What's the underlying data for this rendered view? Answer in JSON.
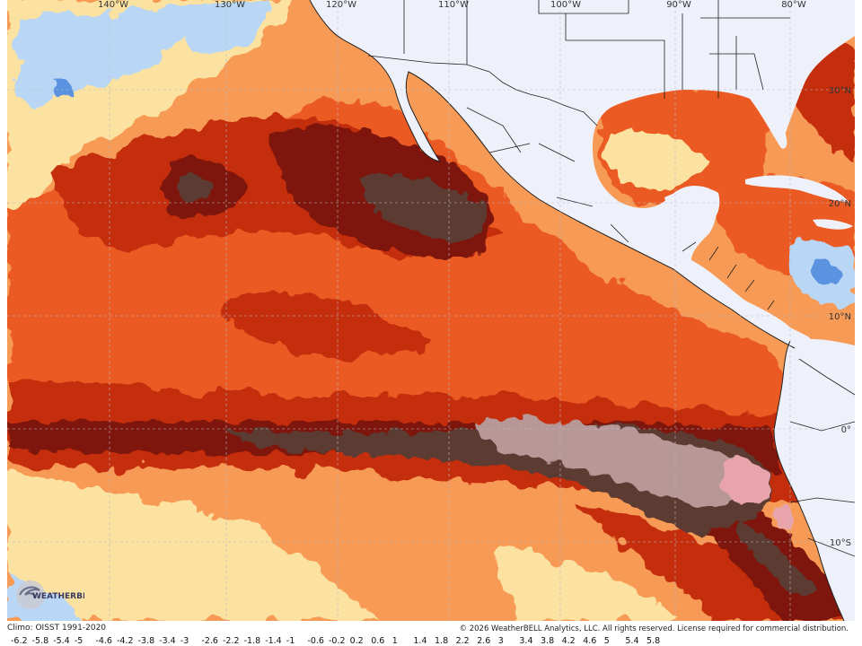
{
  "map": {
    "longitude_labels": [
      "140°W",
      "130°W",
      "120°W",
      "110°W",
      "100°W",
      "90°W",
      "80°W"
    ],
    "latitude_labels": [
      "30°N",
      "20°N",
      "10°N",
      "0°",
      "10°S"
    ],
    "colors": {
      "land": "#eef1fa",
      "border": "#202020",
      "very_cold": "#5b93e0",
      "cold": "#b9d7f5",
      "neutral": "#fbe2a0",
      "warm": "#f79a55",
      "warmer": "#ea5a22",
      "hot": "#c42d10",
      "very_hot": "#7e1907",
      "extreme": "#5b3a33",
      "extreme_pale": "#b89797",
      "extreme_pink": "#e9a4ab"
    }
  },
  "footer": {
    "climo": "Climo: OISST 1991-2020",
    "credit": "© 2026 WeatherBELL Analytics, LLC. All rights reserved. License required for commercial distribution.",
    "logo_text": "WEATHERBELL"
  },
  "scale_ticks": [
    "-6.2",
    "-5.8",
    "-5.4",
    "-5",
    "-4.6",
    "-4.2",
    "-3.8",
    "-3.4",
    "-3",
    "-2.6",
    "-2.2",
    "-1.8",
    "-1.4",
    "-1",
    "-0.6",
    "-0.2",
    "0.2",
    "0.6",
    "1",
    "1.4",
    "1.8",
    "2.2",
    "2.6",
    "3",
    "3.4",
    "3.8",
    "4.2",
    "4.6",
    "5",
    "5.4",
    "5.8"
  ]
}
